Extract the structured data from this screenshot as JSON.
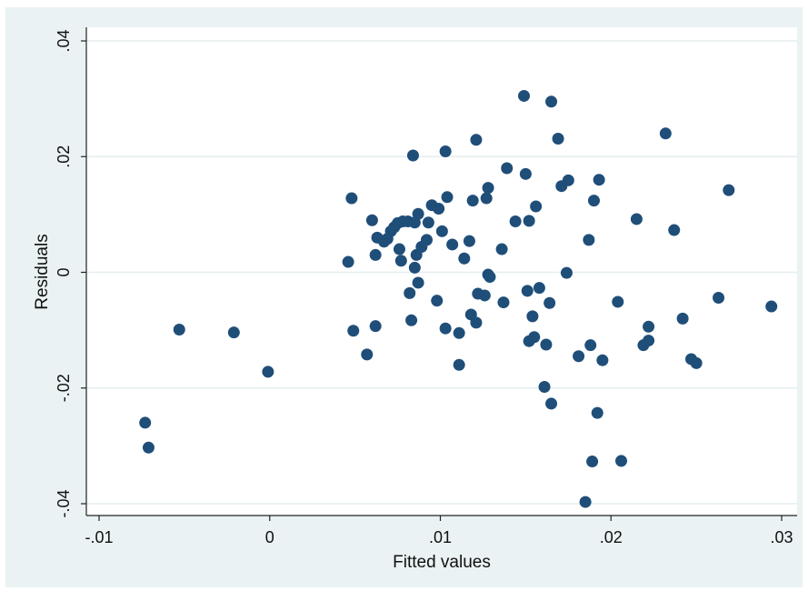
{
  "chart_data": {
    "type": "scatter",
    "xlabel": "Fitted values",
    "ylabel": "Residuals",
    "xlim": [
      -0.01,
      0.03
    ],
    "ylim": [
      -0.04,
      0.04
    ],
    "x_ticks": [
      -0.01,
      0,
      0.01,
      0.02,
      0.03
    ],
    "x_tick_labels": [
      "-.01",
      "0",
      ".01",
      ".02",
      ".03"
    ],
    "y_ticks": [
      -0.04,
      -0.02,
      0,
      0.02,
      0.04
    ],
    "y_tick_labels": [
      "-.04",
      "-.02",
      "0",
      ".02",
      ".04"
    ],
    "grid": "horizontal",
    "colors": {
      "background": "#eaf2f3",
      "plot": "#ffffff",
      "marker": "#1f4e79",
      "grid": "#e6eeef"
    },
    "points": [
      [
        -0.0073,
        -0.026
      ],
      [
        -0.0071,
        -0.0303
      ],
      [
        -0.0053,
        -0.0099
      ],
      [
        -0.0021,
        -0.0104
      ],
      [
        -0.0001,
        -0.0172
      ],
      [
        0.0046,
        0.0018
      ],
      [
        0.0048,
        0.0128
      ],
      [
        0.0049,
        -0.0101
      ],
      [
        0.0057,
        -0.0142
      ],
      [
        0.006,
        0.009
      ],
      [
        0.0062,
        0.003
      ],
      [
        0.0062,
        -0.0093
      ],
      [
        0.0063,
        0.006
      ],
      [
        0.0067,
        0.0053
      ],
      [
        0.0069,
        0.0058
      ],
      [
        0.0071,
        0.0071
      ],
      [
        0.0073,
        0.0078
      ],
      [
        0.0075,
        0.0085
      ],
      [
        0.0076,
        0.004
      ],
      [
        0.0077,
        0.002
      ],
      [
        0.0078,
        0.0088
      ],
      [
        0.0081,
        0.0088
      ],
      [
        0.0082,
        -0.0036
      ],
      [
        0.0083,
        -0.0083
      ],
      [
        0.0084,
        0.0202
      ],
      [
        0.0085,
        0.0086
      ],
      [
        0.0085,
        0.0008
      ],
      [
        0.0086,
        0.003
      ],
      [
        0.0087,
        0.0101
      ],
      [
        0.0087,
        -0.0018
      ],
      [
        0.0089,
        0.0044
      ],
      [
        0.0092,
        0.0056
      ],
      [
        0.0093,
        0.0086
      ],
      [
        0.0095,
        0.0116
      ],
      [
        0.0098,
        -0.0049
      ],
      [
        0.0099,
        0.011
      ],
      [
        0.0101,
        0.0071
      ],
      [
        0.0103,
        0.0209
      ],
      [
        0.0103,
        -0.0097
      ],
      [
        0.0104,
        0.013
      ],
      [
        0.0107,
        0.0048
      ],
      [
        0.0111,
        -0.0105
      ],
      [
        0.0111,
        -0.016
      ],
      [
        0.0114,
        0.0024
      ],
      [
        0.0117,
        0.0054
      ],
      [
        0.0118,
        -0.0073
      ],
      [
        0.0119,
        0.0124
      ],
      [
        0.0121,
        0.0229
      ],
      [
        0.0121,
        -0.0087
      ],
      [
        0.0122,
        -0.0037
      ],
      [
        0.0126,
        -0.004
      ],
      [
        0.0127,
        0.0128
      ],
      [
        0.0128,
        0.0146
      ],
      [
        0.0128,
        -0.0004
      ],
      [
        0.0129,
        -0.0008
      ],
      [
        0.0136,
        0.004
      ],
      [
        0.0137,
        -0.0052
      ],
      [
        0.0139,
        0.018
      ],
      [
        0.0144,
        0.0088
      ],
      [
        0.0149,
        0.0305
      ],
      [
        0.015,
        0.017
      ],
      [
        0.0151,
        -0.0032
      ],
      [
        0.0152,
        0.0089
      ],
      [
        0.0152,
        -0.0119
      ],
      [
        0.0154,
        -0.0076
      ],
      [
        0.0155,
        -0.0112
      ],
      [
        0.0156,
        0.0114
      ],
      [
        0.0158,
        -0.0027
      ],
      [
        0.0161,
        -0.0198
      ],
      [
        0.0162,
        -0.0125
      ],
      [
        0.0164,
        -0.0053
      ],
      [
        0.0165,
        0.0295
      ],
      [
        0.0165,
        -0.0227
      ],
      [
        0.0169,
        0.0231
      ],
      [
        0.0171,
        0.0149
      ],
      [
        0.0174,
        -0.0001
      ],
      [
        0.0175,
        0.0159
      ],
      [
        0.0181,
        -0.0145
      ],
      [
        0.0185,
        -0.0397
      ],
      [
        0.0187,
        0.0056
      ],
      [
        0.0188,
        -0.0126
      ],
      [
        0.0189,
        -0.0327
      ],
      [
        0.019,
        0.0124
      ],
      [
        0.0192,
        -0.0243
      ],
      [
        0.0193,
        0.016
      ],
      [
        0.0195,
        -0.0152
      ],
      [
        0.0204,
        -0.0051
      ],
      [
        0.0206,
        -0.0326
      ],
      [
        0.0215,
        0.0092
      ],
      [
        0.0219,
        -0.0126
      ],
      [
        0.0222,
        -0.0094
      ],
      [
        0.0222,
        -0.0118
      ],
      [
        0.0232,
        0.024
      ],
      [
        0.0237,
        0.0073
      ],
      [
        0.0242,
        -0.008
      ],
      [
        0.0247,
        -0.015
      ],
      [
        0.025,
        -0.0157
      ],
      [
        0.0263,
        -0.0044
      ],
      [
        0.0269,
        0.0142
      ],
      [
        0.0294,
        -0.0059
      ]
    ]
  }
}
